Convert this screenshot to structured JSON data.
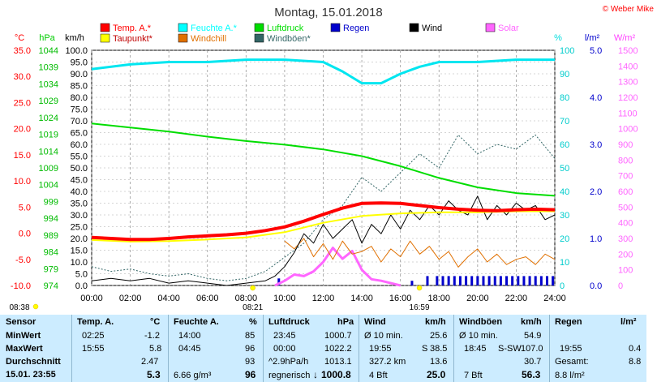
{
  "chart_data": {
    "type": "line",
    "title": "Montag, 15.01.2018",
    "copyright": "© Weber Mike",
    "x_ticks": [
      "00:00",
      "02:00",
      "04:00",
      "06:00",
      "08:00",
      "10:00",
      "12:00",
      "14:00",
      "16:00",
      "18:00",
      "20:00",
      "22:00",
      "24:00"
    ],
    "xlim_hours": [
      0,
      24
    ],
    "sunrise_label": "08:21",
    "sunset_label": "16:59",
    "moon_rise_label": "08:38",
    "grid": true,
    "axes": {
      "temp": {
        "unit": "°C",
        "color": "#ff0000",
        "range": [
          -10,
          35
        ],
        "ticks": [
          "35.0",
          "30.0",
          "25.0",
          "20.0",
          "15.0",
          "10.0",
          "5.0",
          "0.0",
          "-5.0",
          "-10.0"
        ]
      },
      "pressure": {
        "unit": "hPa",
        "color": "#00cc00",
        "range": [
          974,
          1044
        ],
        "ticks": [
          "1044",
          "1039",
          "1034",
          "1029",
          "1024",
          "1019",
          "1014",
          "1009",
          "1004",
          "999",
          "994",
          "989",
          "984",
          "979",
          "974"
        ]
      },
      "wind": {
        "unit": "km/h",
        "color": "#000000",
        "range": [
          0,
          100
        ],
        "ticks": [
          "100.0",
          "95.0",
          "90.0",
          "85.0",
          "80.0",
          "75.0",
          "70.0",
          "65.0",
          "60.0",
          "55.0",
          "50.0",
          "45.0",
          "40.0",
          "35.0",
          "30.0",
          "25.0",
          "20.0",
          "15.0",
          "10.0",
          "5.0",
          "0.0"
        ]
      },
      "humidity": {
        "unit": "%",
        "color": "#00dddd",
        "range": [
          0,
          100
        ],
        "ticks": [
          "100",
          "90",
          "80",
          "70",
          "60",
          "50",
          "40",
          "30",
          "20",
          "10",
          "0"
        ]
      },
      "rain": {
        "unit": "l/m²",
        "color": "#0000cc",
        "range": [
          0,
          5
        ],
        "ticks": [
          "5.0",
          "4.0",
          "3.0",
          "2.0",
          "1.0",
          "0.0"
        ]
      },
      "solar": {
        "unit": "W/m²",
        "color": "#ff44ff",
        "range": [
          0,
          1500
        ],
        "ticks": [
          "1500",
          "1400",
          "1300",
          "1200",
          "1100",
          "1000",
          "900",
          "800",
          "700",
          "600",
          "500",
          "400",
          "300",
          "200",
          "100",
          "0"
        ]
      }
    },
    "legend": [
      {
        "name": "Temp. A.*",
        "color": "#ff0000"
      },
      {
        "name": "Feuchte A.*",
        "color": "#00ffff"
      },
      {
        "name": "Luftdruck",
        "color": "#00dd00"
      },
      {
        "name": "Regen",
        "color": "#0000cc"
      },
      {
        "name": "Wind",
        "color": "#000000"
      },
      {
        "name": "Solar",
        "color": "#ff66ff"
      },
      {
        "name": "Taupunkt*",
        "color": "#ffff00"
      },
      {
        "name": "Windchill",
        "color": "#e07000"
      },
      {
        "name": "Windböen*",
        "color": "#336666"
      }
    ],
    "series": [
      {
        "name": "Temp. A.*",
        "axis": "temp",
        "color": "#ff0000",
        "x": [
          0,
          1,
          2,
          3,
          4,
          5,
          6,
          7,
          8,
          9,
          10,
          11,
          12,
          13,
          14,
          15,
          16,
          17,
          18,
          19,
          20,
          21,
          22,
          23,
          24
        ],
        "y": [
          -0.8,
          -1.0,
          -1.2,
          -1.2,
          -1.0,
          -0.7,
          -0.5,
          -0.3,
          0.0,
          0.5,
          1.2,
          2.3,
          3.6,
          4.8,
          5.7,
          5.8,
          5.7,
          5.3,
          4.9,
          4.6,
          4.4,
          4.3,
          4.5,
          4.6,
          4.5
        ]
      },
      {
        "name": "Taupunkt*",
        "axis": "temp",
        "color": "#ffff00",
        "x": [
          0,
          2,
          4,
          6,
          8,
          10,
          12,
          14,
          16,
          18,
          20,
          22,
          24
        ],
        "y": [
          -1.3,
          -1.6,
          -1.5,
          -1.2,
          -0.8,
          0.2,
          2.0,
          3.3,
          3.8,
          4.0,
          4.0,
          4.2,
          4.2
        ]
      },
      {
        "name": "Feuchte A.",
        "axis": "humidity",
        "color": "#00e6f0",
        "x": [
          0,
          2,
          4,
          6,
          8,
          10,
          12,
          13,
          14,
          15,
          16,
          17,
          18,
          20,
          22,
          24
        ],
        "y": [
          92,
          94,
          95,
          95,
          96,
          96,
          95,
          91,
          86,
          86,
          90,
          93,
          95,
          95,
          96,
          96
        ]
      },
      {
        "name": "Luftdruck",
        "axis": "pressure",
        "color": "#00dd00",
        "x": [
          0,
          2,
          4,
          6,
          8,
          10,
          12,
          14,
          16,
          18,
          20,
          22,
          24
        ],
        "y": [
          1022.2,
          1021.0,
          1019.8,
          1018.3,
          1017.0,
          1015.9,
          1014.5,
          1012.5,
          1009.5,
          1006.0,
          1003.2,
          1001.5,
          1000.7
        ]
      },
      {
        "name": "Wind",
        "axis": "wind",
        "color": "#000000",
        "x": [
          0,
          1,
          2,
          3,
          4,
          5,
          6,
          7,
          8,
          9,
          9.5,
          10,
          10.5,
          11,
          11.5,
          12,
          12.5,
          13,
          13.5,
          14,
          14.5,
          15,
          15.5,
          16,
          16.5,
          17,
          17.5,
          18,
          18.5,
          19,
          19.5,
          20,
          20.5,
          21,
          21.5,
          22,
          22.5,
          23,
          23.5,
          24
        ],
        "y": [
          2,
          3,
          2,
          3,
          1,
          2,
          1,
          0,
          1,
          2,
          4,
          8,
          14,
          22,
          18,
          26,
          20,
          24,
          28,
          18,
          26,
          22,
          30,
          24,
          32,
          28,
          34,
          30,
          36,
          32,
          30,
          38,
          28,
          34,
          30,
          35,
          32,
          34,
          28,
          30
        ]
      },
      {
        "name": "Windböen*",
        "axis": "wind",
        "color": "#336666",
        "x": [
          0,
          1,
          2,
          3,
          4,
          5,
          6,
          7,
          8,
          9,
          10,
          11,
          12,
          13,
          14,
          15,
          16,
          17,
          18,
          19,
          20,
          21,
          22,
          23,
          24
        ],
        "y": [
          8,
          6,
          7,
          5,
          4,
          5,
          3,
          2,
          3,
          6,
          12,
          18,
          28,
          34,
          46,
          40,
          48,
          56,
          50,
          64,
          56,
          60,
          58,
          64,
          54
        ]
      },
      {
        "name": "Windchill",
        "axis": "temp",
        "color": "#e07000",
        "x": [
          10,
          10.5,
          11,
          11.5,
          12,
          12.5,
          13,
          13.5,
          14,
          14.5,
          15,
          15.5,
          16,
          16.5,
          17,
          17.5,
          18,
          18.5,
          19,
          19.5,
          20,
          20.5,
          21,
          21.5,
          22,
          22.5,
          23,
          23.5,
          24
        ],
        "y": [
          -1.5,
          -3.0,
          -1.0,
          -4.5,
          -2.0,
          -5.0,
          -1.5,
          -4.0,
          -3.5,
          -2.5,
          -5.5,
          -3.0,
          -4.5,
          -1.5,
          -4.0,
          -2.5,
          -5.0,
          -3.5,
          -6.5,
          -4.5,
          -3.0,
          -5.5,
          -4.0,
          -6.0,
          -5.0,
          -4.5,
          -6.0,
          -4.0,
          -5.0
        ]
      },
      {
        "name": "Solar",
        "axis": "solar",
        "color": "#ff66ff",
        "x": [
          9.5,
          10,
          10.5,
          11,
          11.5,
          12,
          12.5,
          13,
          13.5,
          14,
          14.5,
          15,
          15.5,
          16
        ],
        "y": [
          0,
          30,
          70,
          60,
          90,
          150,
          240,
          170,
          220,
          100,
          40,
          30,
          15,
          0
        ]
      }
    ],
    "rain_bars": {
      "axis": "rain",
      "color": "#0000cc",
      "x": [
        9.7,
        16.6,
        17.4,
        17.9,
        18.2,
        18.5,
        18.8,
        19.1,
        19.4,
        19.7,
        20.0,
        20.3,
        20.6,
        20.9,
        21.2,
        21.5,
        21.8,
        22.1,
        22.4,
        22.7,
        23.0,
        23.3,
        23.6,
        23.9
      ],
      "y": [
        0.15,
        0.1,
        0.2,
        0.2,
        0.2,
        0.2,
        0.2,
        0.2,
        0.2,
        0.2,
        0.2,
        0.2,
        0.2,
        0.2,
        0.2,
        0.2,
        0.2,
        0.2,
        0.2,
        0.2,
        0.2,
        0.2,
        0.2,
        0.2
      ]
    }
  },
  "stats": {
    "sensor_header": "Sensor",
    "row_labels": [
      "MinWert",
      "MaxWert",
      "Durchschnitt",
      "15.01. 23:55"
    ],
    "temp": {
      "title": "Temp. A.",
      "unit": "°C",
      "min_time": "02:25",
      "min": "-1.2",
      "max_time": "15:55",
      "max": "5.8",
      "avg": "2.47",
      "current": "5.3"
    },
    "humidity": {
      "title": "Feuchte A.",
      "unit": "%",
      "min_time": "14:00",
      "min": "85",
      "max_time": "04:45",
      "max": "96",
      "avg": "93",
      "abs": "6.66 g/m³",
      "current": "96"
    },
    "pressure": {
      "title": "Luftdruck",
      "unit": "hPa",
      "min_time": "23:45",
      "min": "1000.7",
      "max_time": "00:00",
      "max": "1022.2",
      "trend": "^2.9hPa/h",
      "avg": "1013.1",
      "forecast": "regnerisch",
      "current": "1000.8",
      "trend_arrow": "↓"
    },
    "wind": {
      "title": "Wind",
      "unit": "km/h",
      "avg10": "Ø 10 min.",
      "avg10_val": "25.6",
      "max_time": "19:55",
      "max_dir": "S",
      "max": "38.5",
      "distance": "327.2 km",
      "avg": "13.6",
      "bft": "4 Bft",
      "current": "25.0"
    },
    "gusts": {
      "title": "Windböen",
      "unit": "km/h",
      "avg10": "Ø 10 min.",
      "avg10_val": "54.9",
      "max_time": "18:45",
      "max_dir": "S-SW",
      "max": "107.0",
      "avg": "30.7",
      "bft": "7 Bft",
      "current": "56.3"
    },
    "rain": {
      "title": "Regen",
      "unit": "l/m²",
      "max_time": "19:55",
      "max": "0.4",
      "total_label": "Gesamt:",
      "total": "8.8",
      "current": "8.8 l/m²"
    }
  }
}
